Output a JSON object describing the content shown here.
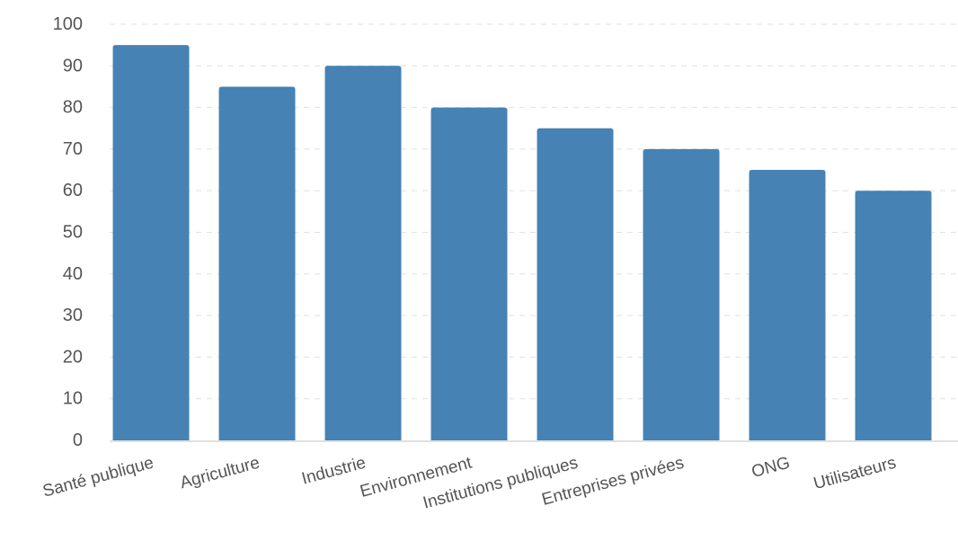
{
  "chart_data": {
    "type": "bar",
    "categories": [
      "Santé publique",
      "Agriculture",
      "Industrie",
      "Environnement",
      "Institutions publiques",
      "Entreprises privées",
      "ONG",
      "Utilisateurs"
    ],
    "values": [
      95,
      85,
      90,
      80,
      75,
      70,
      65,
      60
    ],
    "title": "",
    "xlabel": "",
    "ylabel": "",
    "ylim": [
      0,
      100
    ],
    "yticks": [
      0,
      10,
      20,
      30,
      40,
      50,
      60,
      70,
      80,
      90,
      100
    ],
    "grid": true,
    "legend": "none",
    "bar_color": "#4682b4",
    "grid_color": "#e0e0e0",
    "text_color": "#555555"
  }
}
